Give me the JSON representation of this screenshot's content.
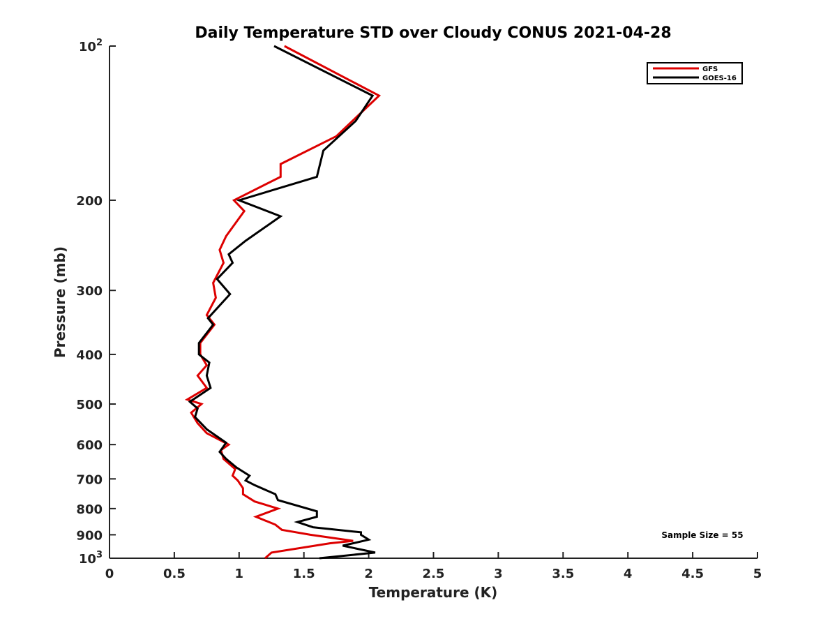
{
  "chart_data": {
    "type": "line",
    "title": "Daily Temperature STD over Cloudy CONUS 2021-04-28",
    "xlabel": "Temperature (K)",
    "ylabel": "Pressure (mb)",
    "xlim": [
      0,
      5
    ],
    "ylim": [
      100,
      1000
    ],
    "y_scale": "log",
    "y_reversed": true,
    "grid": false,
    "legend_position": "top-right",
    "x_ticks": [
      "0",
      "0.5",
      "1",
      "1.5",
      "2",
      "2.5",
      "3",
      "3.5",
      "4",
      "4.5",
      "5"
    ],
    "y_ticks": [
      {
        "value": 100,
        "base": "10",
        "exp": "2"
      },
      {
        "value": 200,
        "label": "200"
      },
      {
        "value": 300,
        "label": "300"
      },
      {
        "value": 400,
        "label": "400"
      },
      {
        "value": 500,
        "label": "500"
      },
      {
        "value": 600,
        "label": "600"
      },
      {
        "value": 700,
        "label": "700"
      },
      {
        "value": 800,
        "label": "800"
      },
      {
        "value": 900,
        "label": "900"
      },
      {
        "value": 1000,
        "base": "10",
        "exp": "3"
      }
    ],
    "annotation": "Sample Size = 55",
    "series": [
      {
        "name": "GFS",
        "color": "#dd0000",
        "points": [
          [
            1.35,
            100
          ],
          [
            2.08,
            125
          ],
          [
            1.75,
            150
          ],
          [
            1.32,
            170
          ],
          [
            1.32,
            180
          ],
          [
            0.96,
            200
          ],
          [
            1.04,
            210
          ],
          [
            0.9,
            235
          ],
          [
            0.85,
            250
          ],
          [
            0.88,
            265
          ],
          [
            0.8,
            290
          ],
          [
            0.82,
            310
          ],
          [
            0.75,
            335
          ],
          [
            0.81,
            350
          ],
          [
            0.7,
            380
          ],
          [
            0.7,
            400
          ],
          [
            0.75,
            420
          ],
          [
            0.68,
            440
          ],
          [
            0.75,
            465
          ],
          [
            0.6,
            490
          ],
          [
            0.71,
            500
          ],
          [
            0.63,
            520
          ],
          [
            0.68,
            545
          ],
          [
            0.75,
            570
          ],
          [
            0.92,
            600
          ],
          [
            0.86,
            615
          ],
          [
            0.88,
            640
          ],
          [
            0.97,
            670
          ],
          [
            0.95,
            690
          ],
          [
            0.99,
            705
          ],
          [
            1.03,
            730
          ],
          [
            1.03,
            750
          ],
          [
            1.12,
            775
          ],
          [
            1.3,
            800
          ],
          [
            1.13,
            830
          ],
          [
            1.28,
            860
          ],
          [
            1.33,
            880
          ],
          [
            1.55,
            900
          ],
          [
            1.88,
            925
          ],
          [
            1.7,
            935
          ],
          [
            1.25,
            975
          ],
          [
            1.2,
            1000
          ]
        ]
      },
      {
        "name": "GOES-16",
        "color": "#000000",
        "points": [
          [
            1.27,
            100
          ],
          [
            2.03,
            125
          ],
          [
            1.9,
            140
          ],
          [
            1.65,
            160
          ],
          [
            1.6,
            180
          ],
          [
            1.0,
            200
          ],
          [
            1.32,
            215
          ],
          [
            1.05,
            240
          ],
          [
            0.92,
            255
          ],
          [
            0.95,
            265
          ],
          [
            0.83,
            285
          ],
          [
            0.93,
            305
          ],
          [
            0.76,
            340
          ],
          [
            0.8,
            350
          ],
          [
            0.69,
            380
          ],
          [
            0.69,
            400
          ],
          [
            0.77,
            415
          ],
          [
            0.75,
            440
          ],
          [
            0.78,
            465
          ],
          [
            0.62,
            495
          ],
          [
            0.68,
            510
          ],
          [
            0.66,
            530
          ],
          [
            0.75,
            560
          ],
          [
            0.9,
            595
          ],
          [
            0.85,
            620
          ],
          [
            0.9,
            640
          ],
          [
            0.98,
            665
          ],
          [
            1.08,
            690
          ],
          [
            1.05,
            705
          ],
          [
            1.12,
            720
          ],
          [
            1.28,
            750
          ],
          [
            1.3,
            770
          ],
          [
            1.6,
            810
          ],
          [
            1.6,
            830
          ],
          [
            1.45,
            850
          ],
          [
            1.57,
            870
          ],
          [
            1.94,
            890
          ],
          [
            1.94,
            900
          ],
          [
            2.0,
            920
          ],
          [
            1.8,
            945
          ],
          [
            2.05,
            975
          ],
          [
            1.62,
            1000
          ]
        ]
      }
    ]
  }
}
